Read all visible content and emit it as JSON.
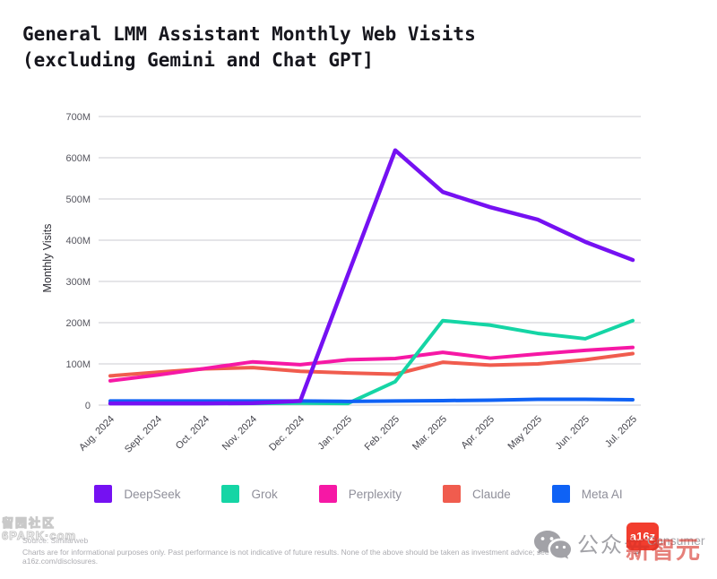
{
  "title": {
    "line1": "General LMM Assistant Monthly Web Visits",
    "line2": "(excluding Gemini and Chat GPT]"
  },
  "chart_data": {
    "type": "line",
    "title": "General LMM Assistant Monthly Web Visits (excluding Gemini and Chat GPT]",
    "xlabel": "",
    "ylabel": "Monthly Visits",
    "x": [
      "Aug. 2024",
      "Sept. 2024",
      "Oct. 2024",
      "Nov. 2024",
      "Dec. 2024",
      "Jan. 2025",
      "Feb. 2025",
      "Mar. 2025",
      "Apr. 2025",
      "May 2025",
      "Jun. 2025",
      "Jul. 2025"
    ],
    "unit": "millions of visits",
    "ylim": [
      0,
      700
    ],
    "yticks": [
      0,
      100,
      200,
      300,
      400,
      500,
      600,
      700
    ],
    "ytick_labels": [
      "0",
      "100M",
      "200M",
      "300M",
      "400M",
      "500M",
      "600M",
      "700M"
    ],
    "grid": "horizontal",
    "legend_position": "bottom",
    "series": [
      {
        "name": "DeepSeek",
        "color": "#7511f2",
        "values": [
          4,
          4,
          4,
          5,
          10,
          315,
          618,
          517,
          480,
          450,
          396,
          352
        ]
      },
      {
        "name": "Grok",
        "color": "#15d5a5",
        "values": [
          5,
          4,
          4,
          4,
          5,
          4,
          57,
          205,
          194,
          174,
          161,
          205
        ]
      },
      {
        "name": "Perplexity",
        "color": "#f618a5",
        "values": [
          59,
          73,
          89,
          105,
          98,
          110,
          113,
          128,
          114,
          124,
          133,
          140
        ]
      },
      {
        "name": "Claude",
        "color": "#f05c4e",
        "values": [
          71,
          80,
          88,
          91,
          82,
          78,
          75,
          104,
          97,
          100,
          110,
          125
        ]
      },
      {
        "name": "Meta AI",
        "color": "#0f62f5",
        "values": [
          10,
          10,
          10,
          10,
          10,
          9,
          10,
          11,
          12,
          14,
          14,
          13
        ]
      }
    ],
    "draw_order": [
      "Claude",
      "Perplexity",
      "Grok",
      "Meta AI",
      "DeepSeek"
    ]
  },
  "footer": {
    "source": "Source: Similarweb",
    "disclaimer": "Charts are for informational purposes only. Past performance is not indicative of future results. None of the above should be taken as investment advice; see a16z.com/disclosures.",
    "wechat_label": "公众号",
    "a16z_logo": "a16z",
    "a16z_consumer": "Consumer",
    "red_watermark": "新智元"
  },
  "watermark": {
    "line1": "留园社区",
    "line2": "6PARK·com"
  }
}
